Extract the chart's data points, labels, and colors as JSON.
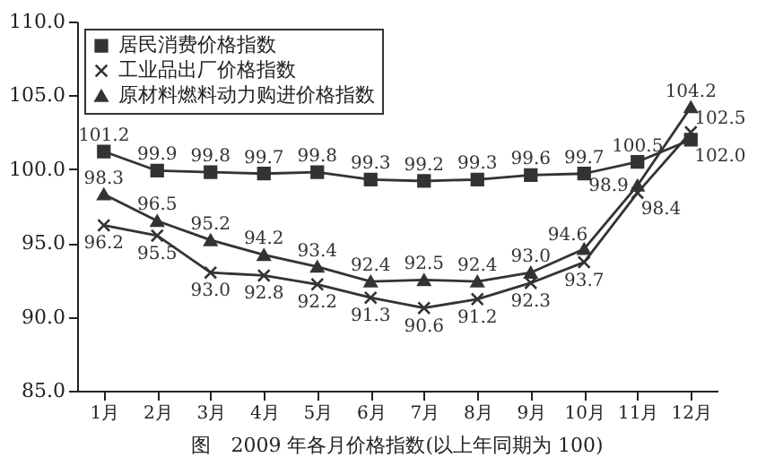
{
  "chart_data": {
    "type": "line",
    "title": "图　2009 年各月价格指数(以上年同期为 100)",
    "categories": [
      "1月",
      "2月",
      "3月",
      "4月",
      "5月",
      "6月",
      "7月",
      "8月",
      "9月",
      "10月",
      "11月",
      "12月"
    ],
    "series": [
      {
        "name": "居民消费价格指数",
        "color": "#333333",
        "marker": "square",
        "values": [
          101.2,
          99.9,
          99.8,
          99.7,
          99.8,
          99.3,
          99.2,
          99.3,
          99.6,
          99.7,
          100.5,
          102.0
        ],
        "value_labels": [
          "101.2",
          "99.9",
          "99.8",
          "99.7",
          "99.8",
          "99.3",
          "99.2",
          "99.3",
          "99.6",
          "99.7",
          "100.5",
          "102.0"
        ]
      },
      {
        "name": "工业品出厂价格指数",
        "color": "#333333",
        "marker": "cross",
        "values": [
          96.2,
          95.5,
          93.0,
          92.8,
          92.2,
          91.3,
          90.6,
          91.2,
          92.3,
          93.7,
          98.4,
          102.5
        ],
        "value_labels": [
          "96.2",
          "95.5",
          "93.0",
          "92.8",
          "92.2",
          "91.3",
          "90.6",
          "91.2",
          "92.3",
          "93.7",
          "98.4",
          "102.5"
        ]
      },
      {
        "name": "原材料燃料动力购进价格指数",
        "color": "#333333",
        "marker": "triangle",
        "values": [
          98.3,
          96.5,
          95.2,
          94.2,
          93.4,
          92.4,
          92.5,
          92.4,
          93.0,
          94.6,
          98.9,
          104.2
        ],
        "value_labels": [
          "98.3",
          "96.5",
          "95.2",
          "94.2",
          "93.4",
          "92.4",
          "92.5",
          "92.4",
          "93.0",
          "94.6",
          "98.9",
          "104.2"
        ]
      }
    ],
    "ylim": [
      85,
      110
    ],
    "yticks": [
      {
        "value": 85,
        "label": "85.0"
      },
      {
        "value": 90,
        "label": "90.0"
      },
      {
        "value": 95,
        "label": "95.0"
      },
      {
        "value": 100,
        "label": "100.0"
      },
      {
        "value": 105,
        "label": "105.0"
      },
      {
        "value": 110,
        "label": "110.0"
      }
    ],
    "grid": false,
    "legend": "top left"
  }
}
